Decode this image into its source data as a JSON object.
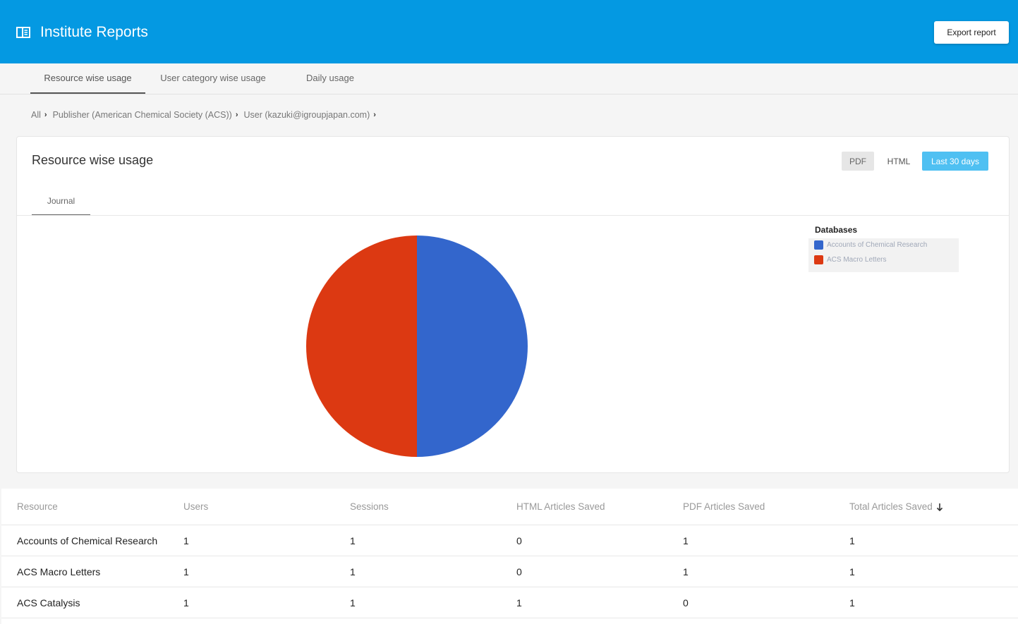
{
  "header": {
    "title": "Institute Reports",
    "export_label": "Export report",
    "background_color": "#0499e2"
  },
  "tabs": [
    {
      "label": "Resource wise usage",
      "active": true
    },
    {
      "label": "User category wise usage",
      "active": false
    },
    {
      "label": "Daily usage",
      "active": false
    }
  ],
  "breadcrumb": [
    "All",
    "Publisher (American Chemical Society (ACS))",
    "User (kazuki@igroupjapan.com)"
  ],
  "card": {
    "title": "Resource wise usage",
    "format_buttons": {
      "pdf": "PDF",
      "html": "HTML"
    },
    "range_label": "Last 30 days",
    "subtab": "Journal",
    "legend_title": "Databases"
  },
  "chart_data": {
    "type": "pie",
    "slices": [
      {
        "label": "Accounts of Chemical Research",
        "value": 1,
        "color": "#3366cc"
      },
      {
        "label": "ACS Macro Letters",
        "value": 1,
        "color": "#dc3912"
      }
    ]
  },
  "table": {
    "columns": [
      "Resource",
      "Users",
      "Sessions",
      "HTML Articles Saved",
      "PDF Articles Saved",
      "Total Articles Saved"
    ],
    "sort_column": "Total Articles Saved",
    "sort_direction": "descending",
    "rows": [
      [
        "Accounts of Chemical Research",
        "1",
        "1",
        "0",
        "1",
        "1"
      ],
      [
        "ACS Macro Letters",
        "1",
        "1",
        "0",
        "1",
        "1"
      ],
      [
        "ACS Catalysis",
        "1",
        "1",
        "1",
        "0",
        "1"
      ]
    ]
  }
}
